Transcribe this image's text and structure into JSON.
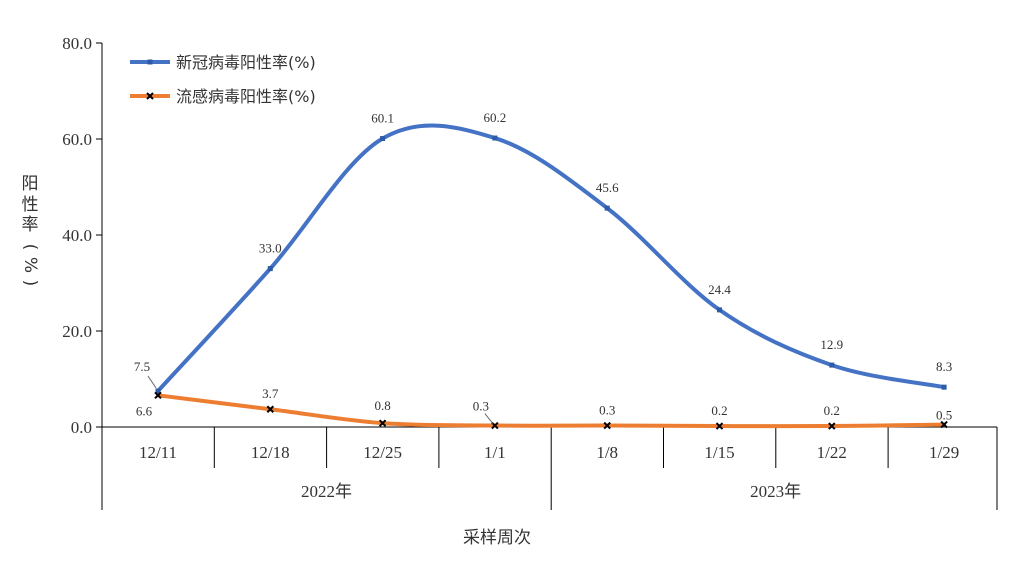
{
  "chart_data": {
    "type": "line",
    "categories": [
      "12/11",
      "12/18",
      "12/25",
      "1/1",
      "1/8",
      "1/15",
      "1/22",
      "1/29"
    ],
    "groups": [
      {
        "label": "2022年",
        "from": 0,
        "to": 3
      },
      {
        "label": "2023年",
        "from": 4,
        "to": 7
      }
    ],
    "series": [
      {
        "name": "新冠病毒阳性率(%)",
        "color": "#4472C4",
        "values": [
          7.5,
          33.0,
          60.1,
          60.2,
          45.6,
          24.4,
          12.9,
          8.3
        ],
        "labels": [
          "7.5",
          "33.0",
          "60.1",
          "60.2",
          "45.6",
          "24.4",
          "12.9",
          "8.3"
        ]
      },
      {
        "name": "流感病毒阳性率(%)",
        "color": "#ED7D31",
        "values": [
          6.6,
          3.7,
          0.8,
          0.3,
          0.3,
          0.2,
          0.2,
          0.5
        ],
        "labels": [
          "6.6",
          "3.7",
          "0.8",
          "0.3",
          "0.3",
          "0.2",
          "0.2",
          "0.5"
        ]
      }
    ],
    "yticks": [
      "80.0",
      "60.0",
      "40.0",
      "20.0",
      "0.0"
    ],
    "ytick_values": [
      80,
      60,
      40,
      20,
      0
    ],
    "ylim": [
      0,
      80
    ],
    "ylabel_chars": [
      "阳",
      "性",
      "率",
      "(",
      "%",
      ")"
    ],
    "xlabel": "采样周次",
    "legend_position": "top-left",
    "grid": false,
    "smooth": true
  }
}
